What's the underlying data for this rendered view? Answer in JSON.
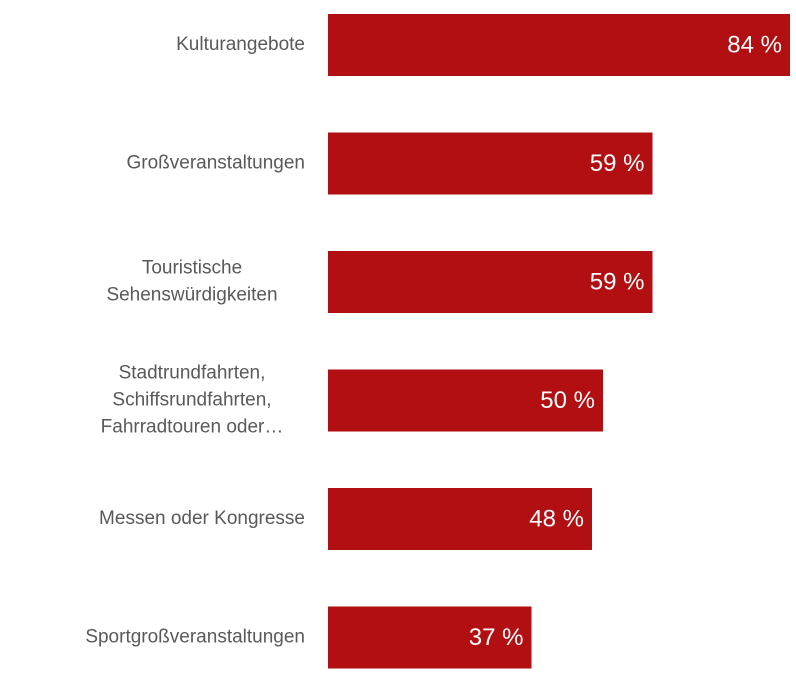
{
  "chart_data": {
    "type": "bar",
    "orientation": "horizontal",
    "categories": [
      "Kulturangebote",
      "Großveranstaltungen",
      "Touristische\nSehenswürdigkeiten",
      "Stadtrundfahrten,\nSchiffsrundfahrten,\nFahrradtouren oder…",
      "Messen oder Kongresse",
      "Sportgroßveranstaltungen"
    ],
    "values": [
      84,
      59,
      59,
      50,
      48,
      37
    ],
    "value_labels": [
      "84 %",
      "59 %",
      "59 %",
      "50 %",
      "48 %",
      "37 %"
    ],
    "color": "#b20f12"
  }
}
